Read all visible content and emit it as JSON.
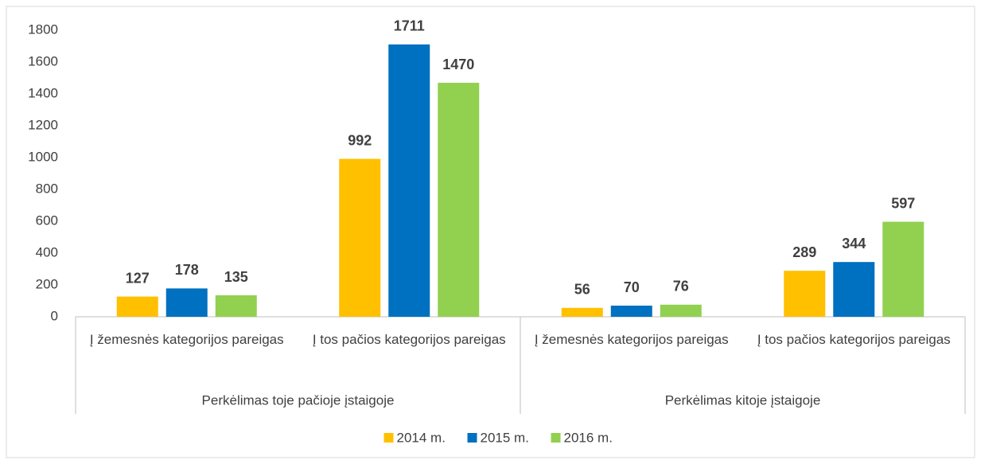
{
  "chart_data": {
    "type": "bar",
    "categories": [
      "Į žemesnės kategorijos pareigas",
      "Į tos pačios kategorijos pareigas",
      "Į žemesnės kategorijos pareigas",
      "Į tos pačios kategorijos pareigas"
    ],
    "groups": [
      "Perkėlimas toje pačioje įstaigoje",
      "Perkėlimas kitoje įstaigoje"
    ],
    "series": [
      {
        "name": "2014 m.",
        "color": "#FFC000",
        "values": [
          127,
          992,
          56,
          289
        ]
      },
      {
        "name": "2015 m.",
        "color": "#0070C0",
        "values": [
          178,
          1711,
          70,
          344
        ]
      },
      {
        "name": "2016 m.",
        "color": "#92D050",
        "values": [
          135,
          1470,
          76,
          597
        ]
      }
    ],
    "ylim": [
      0,
      1800
    ],
    "yticks": [
      0,
      200,
      400,
      600,
      800,
      1000,
      1200,
      1400,
      1600,
      1800
    ],
    "grid": false,
    "legend": "bottom"
  }
}
